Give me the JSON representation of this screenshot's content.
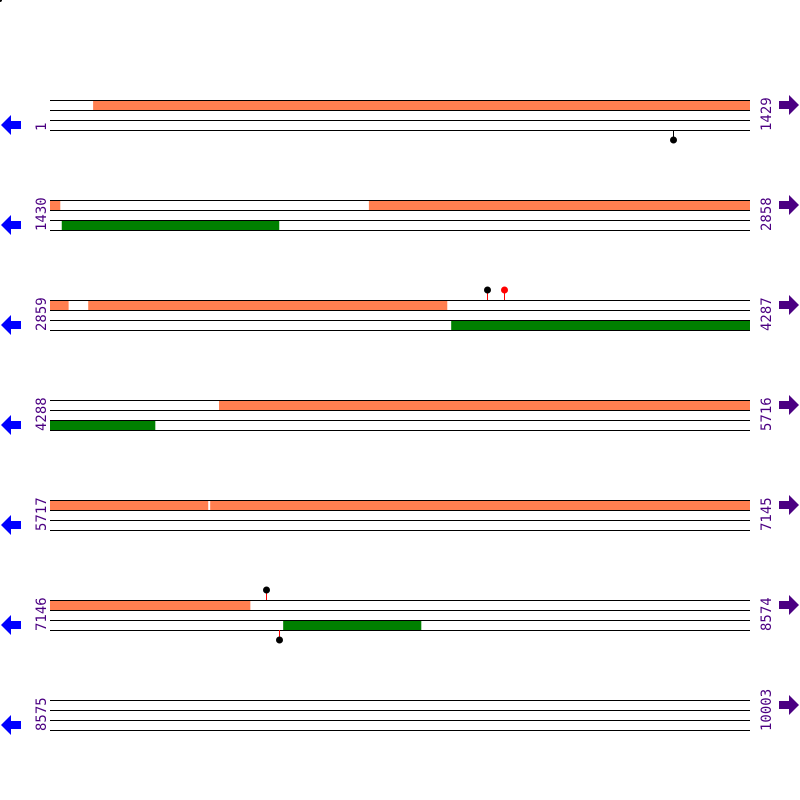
{
  "colors": {
    "top_feature": "#ff7f50",
    "bottom_feature": "#008000",
    "line": "#000000",
    "label": "#4b0082",
    "left_arrow": "#0000ff",
    "right_arrow": "#4b0082",
    "marker_red": "#ff0000",
    "marker_black": "#000000"
  },
  "icons": {
    "left": "arrow-left-icon",
    "right": "arrow-right-icon"
  },
  "residues_per_row": 1429,
  "rows": [
    {
      "start": "1",
      "end": "1429",
      "s": 1,
      "top": [
        [
          89,
          1429
        ]
      ],
      "bottom": [],
      "markers": [
        {
          "pos": 1273,
          "side": "bottom",
          "head": "#000000",
          "stick": "#000000"
        }
      ]
    },
    {
      "start": "1430",
      "end": "2858",
      "s": 1430,
      "top": [
        [
          1430,
          1450
        ],
        [
          2081,
          2858
        ]
      ],
      "bottom": [
        [
          1454,
          1897
        ]
      ],
      "markers": []
    },
    {
      "start": "2859",
      "end": "4287",
      "s": 2859,
      "top": [
        [
          2859,
          2896
        ],
        [
          2937,
          3669
        ]
      ],
      "bottom": [
        [
          3678,
          4287
        ]
      ],
      "markers": [
        {
          "pos": 3751,
          "side": "top",
          "head": "#000000",
          "stick": "#ff0000"
        },
        {
          "pos": 3786,
          "side": "top",
          "head": "#ff0000",
          "stick": "#ff0000"
        }
      ]
    },
    {
      "start": "4288",
      "end": "5716",
      "s": 4288,
      "top": [
        [
          4633,
          5716
        ]
      ],
      "bottom": [
        [
          4288,
          4502
        ]
      ],
      "markers": []
    },
    {
      "start": "5717",
      "end": "7145",
      "s": 5717,
      "top": [
        [
          5717,
          6039
        ],
        [
          6044,
          7145
        ]
      ],
      "bottom": [],
      "markers": []
    },
    {
      "start": "7146",
      "end": "8574",
      "s": 7146,
      "top": [
        [
          7146,
          7554
        ]
      ],
      "bottom": [
        [
          7622,
          7903
        ]
      ],
      "markers": [
        {
          "pos": 7587,
          "side": "top",
          "head": "#000000",
          "stick": "#ff0000"
        },
        {
          "pos": 7613,
          "side": "bottom",
          "head": "#000000",
          "stick": "#ff0000"
        }
      ]
    },
    {
      "start": "8575",
      "end": "10003",
      "s": 8575,
      "top": [],
      "bottom": [],
      "markers": []
    }
  ]
}
